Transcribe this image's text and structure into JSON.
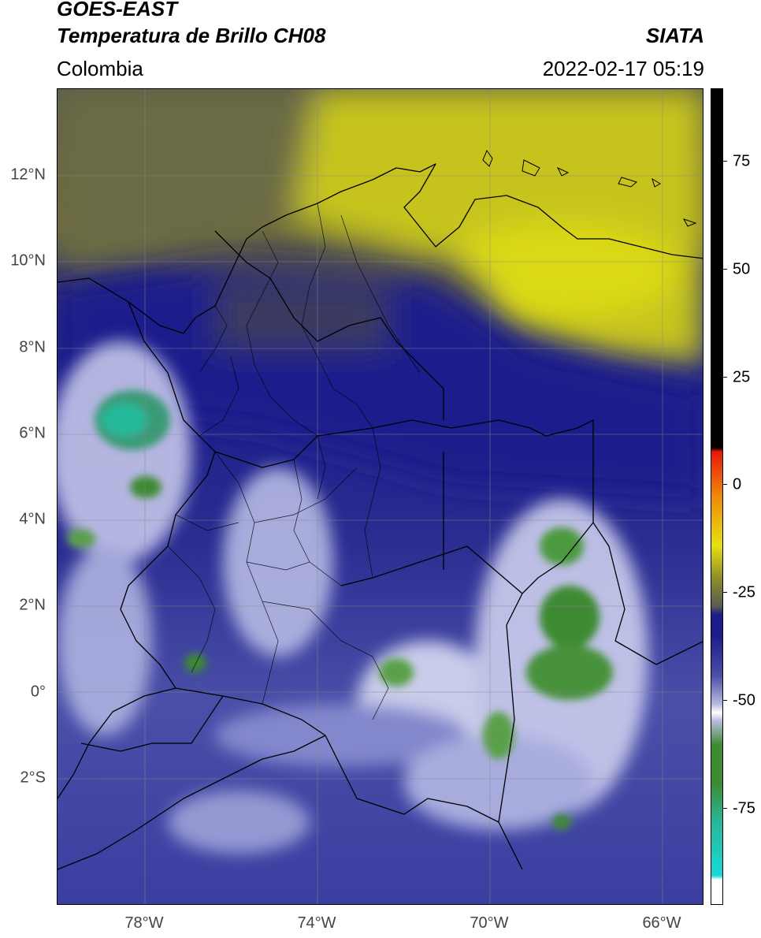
{
  "header": {
    "satellite": "GOES-EAST",
    "product": "Temperatura de Brillo CH08",
    "agency": "SIATA",
    "region": "Colombia",
    "datetime": "2022-02-17 05:19"
  },
  "axes": {
    "lon_labels": [
      "78°W",
      "74°W",
      "70°W",
      "66°W"
    ],
    "lat_labels": [
      "12°N",
      "10°N",
      "8°N",
      "6°N",
      "4°N",
      "2°N",
      "0°",
      "2°S"
    ]
  },
  "colorbar": {
    "labels": [
      "75",
      "50",
      "25",
      "0",
      "-25",
      "-50",
      "-75"
    ],
    "colors": {
      "black": "#000000",
      "red": "#e8180c",
      "orange": "#f08a0a",
      "yellow": "#e6e012",
      "olive": "#8e8e2a",
      "gray": "#5a5a52",
      "navy": "#1c1c8a",
      "slate": "#4a4fa8",
      "lavender": "#b8bce0",
      "white": "#ffffff",
      "green": "#3e8a30",
      "teal": "#28b89a",
      "cyan": "#18d8d8"
    }
  }
}
